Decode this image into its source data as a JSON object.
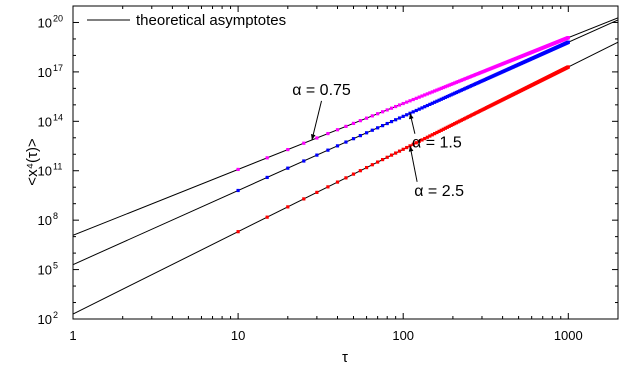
{
  "chart_data": {
    "type": "line",
    "xlabel": "τ",
    "ylabel": "<x⁴(τ)>",
    "xscale": "log",
    "yscale": "log",
    "xlim": [
      1,
      2000
    ],
    "ylim": [
      100,
      1e+21
    ],
    "x_ticks": [
      {
        "value": 1,
        "label": "1"
      },
      {
        "value": 10,
        "label": "10"
      },
      {
        "value": 100,
        "label": "100"
      },
      {
        "value": 1000,
        "label": "1000"
      }
    ],
    "y_ticks": [
      {
        "value": 100,
        "base": "10",
        "exp": "2"
      },
      {
        "value": 100000,
        "base": "10",
        "exp": "5"
      },
      {
        "value": 100000000,
        "base": "10",
        "exp": "8"
      },
      {
        "value": 100000000000,
        "base": "10",
        "exp": "11"
      },
      {
        "value": 100000000000000,
        "base": "10",
        "exp": "14"
      },
      {
        "value": 1e+17,
        "base": "10",
        "exp": "17"
      },
      {
        "value": 1e+20,
        "base": "10",
        "exp": "20"
      }
    ],
    "legend": {
      "position": "top-left",
      "entries": [
        {
          "label": "theoretical asymptotes",
          "color": "#000000"
        }
      ]
    },
    "asymptote_color": "#000000",
    "series": [
      {
        "label": "α = 0.75",
        "color": "#ff00ff",
        "x_range": [
          10,
          1000
        ],
        "y_at_1": 12000000,
        "slope": 4,
        "label_at": [
          32,
          4000000000000000.0
        ]
      },
      {
        "label": "α = 1.5",
        "color": "#0000ff",
        "x_range": [
          10,
          1000
        ],
        "y_at_1": 200000,
        "slope": 4.5,
        "label_at": [
          160,
          2500000000000.0
        ]
      },
      {
        "label": "α = 2.5",
        "color": "#ff0000",
        "x_range": [
          10,
          1000
        ],
        "y_at_1": 200,
        "slope": 5,
        "label_at": [
          165,
          3000000000.0
        ]
      }
    ]
  }
}
